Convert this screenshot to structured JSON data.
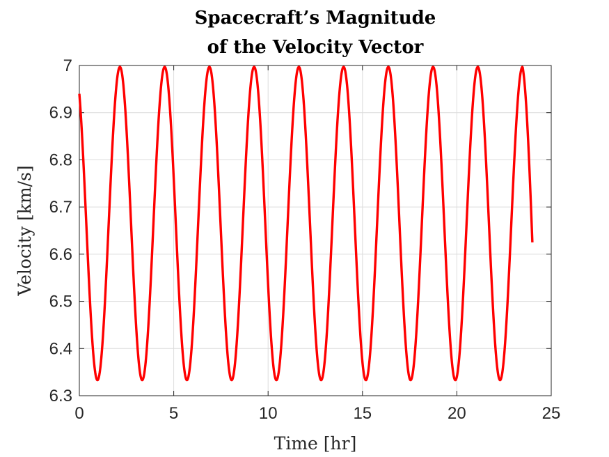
{
  "chart_data": {
    "type": "line",
    "title": [
      "Spacecraft’s Magnitude",
      "of the Velocity Vector"
    ],
    "xlabel": "Time [hr]",
    "ylabel": "Velocity [km/s]",
    "xlim": [
      0,
      25
    ],
    "ylim": [
      6.3,
      7
    ],
    "xticks": [
      0,
      5,
      10,
      15,
      20,
      25
    ],
    "yticks": [
      6.3,
      6.4,
      6.5,
      6.6,
      6.7,
      6.8,
      6.9,
      7
    ],
    "ytick_labels": [
      "6.3",
      "6.4",
      "6.5",
      "6.6",
      "6.7",
      "6.8",
      "6.9",
      "7"
    ],
    "grid": true,
    "line_color": "#ff0000",
    "series": [
      {
        "x_start": 0,
        "x_end": 24,
        "y_start": 6.94,
        "y_end": 6.625,
        "min": 6.333,
        "max": 6.997,
        "maxima_times": [
          2.15,
          4.52,
          6.89,
          9.26,
          11.63,
          14.0,
          16.37,
          18.74,
          21.11,
          23.48
        ],
        "minima_times": [
          0.96,
          3.33,
          5.7,
          8.07,
          10.44,
          12.81,
          15.18,
          17.55,
          19.92,
          22.29
        ]
      }
    ]
  }
}
